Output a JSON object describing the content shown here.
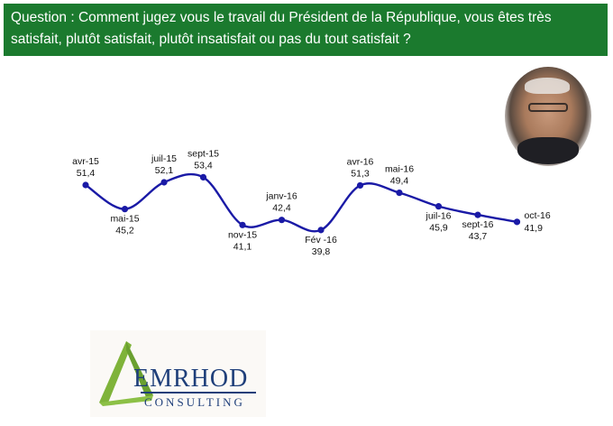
{
  "question": {
    "text": "Question : Comment jugez vous le travail du Président de la République, vous êtes très satisfait, plutôt satisfait, plutôt insatisfait ou pas du tout satisfait  ?"
  },
  "logo": {
    "name": "EMRHOD",
    "subtitle": "CONSULTING"
  },
  "colors": {
    "banner": "#1b7a2e",
    "line": "#1a1aa6",
    "logo_text": "#1f3f7a"
  },
  "chart_data": {
    "type": "line",
    "categories": [
      "avr-15",
      "mai-15",
      "juil-15",
      "sept-15",
      "nov-15",
      "janv-16",
      "Fév -16",
      "avr-16",
      "mai-16",
      "juil-16",
      "sept-16",
      "oct-16"
    ],
    "series": [
      {
        "values": [
          51.4,
          45.2,
          52.1,
          53.4,
          41.1,
          42.4,
          39.8,
          51.3,
          49.4,
          45.9,
          43.7,
          41.9
        ],
        "value_labels": [
          "51,4",
          "45,2",
          "52,1",
          "53,4",
          "41,1",
          "42,4",
          "39,8",
          "51,3",
          "49,4",
          "45,9",
          "43,7",
          "41,9"
        ],
        "label_positions": [
          "above",
          "below",
          "above",
          "above",
          "below",
          "above",
          "below",
          "above",
          "above",
          "below",
          "below",
          "right"
        ]
      }
    ],
    "x_axis": "none",
    "y_axis": "none",
    "grid": false,
    "legend": false,
    "smooth": true
  }
}
